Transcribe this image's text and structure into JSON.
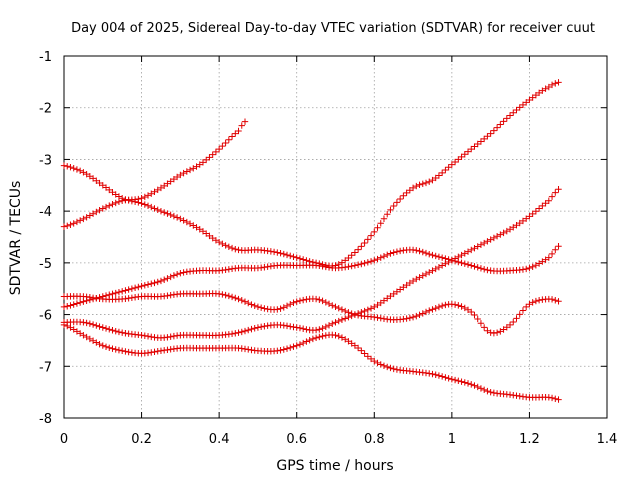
{
  "chart_data": {
    "type": "scatter",
    "title": "Day 004 of 2025, Sidereal Day-to-day VTEC variation (SDTVAR) for receiver cuut",
    "xlabel": "GPS time / hours",
    "ylabel": "SDTVAR / TECUs",
    "xlim": [
      0,
      1.4
    ],
    "ylim": [
      -8,
      -1
    ],
    "xticks": [
      0,
      0.2,
      0.4,
      0.6,
      0.8,
      1,
      1.2,
      1.4
    ],
    "xtick_labels": [
      "0",
      "0.2",
      "0.4",
      "0.6",
      "0.8",
      "1",
      "1.2",
      "1.4"
    ],
    "yticks": [
      -8,
      -7,
      -6,
      -5,
      -4,
      -3,
      -2,
      -1
    ],
    "ytick_labels": [
      "-8",
      "-7",
      "-6",
      "-5",
      "-4",
      "-3",
      "-2",
      "-1"
    ],
    "grid": true,
    "marker": "+",
    "marker_color": "#e00000",
    "series": [
      {
        "name": "s1",
        "x": [
          0,
          0.05,
          0.1,
          0.15,
          0.2,
          0.25,
          0.3,
          0.35,
          0.4,
          0.45,
          0.47
        ],
        "y": [
          -4.3,
          -4.15,
          -3.95,
          -3.8,
          -3.75,
          -3.55,
          -3.3,
          -3.1,
          -2.8,
          -2.45,
          -2.25
        ]
      },
      {
        "name": "s2",
        "x": [
          0,
          0.05,
          0.1,
          0.15,
          0.2,
          0.25,
          0.3,
          0.35,
          0.4,
          0.45,
          0.5,
          0.55,
          0.6,
          0.65,
          0.7,
          0.75,
          0.8,
          0.85,
          0.9,
          0.95,
          1.0,
          1.05,
          1.1,
          1.15,
          1.2,
          1.25,
          1.28
        ],
        "y": [
          -3.12,
          -3.25,
          -3.5,
          -3.75,
          -3.85,
          -4.0,
          -4.15,
          -4.35,
          -4.6,
          -4.75,
          -4.75,
          -4.8,
          -4.9,
          -5.0,
          -5.05,
          -4.8,
          -4.4,
          -3.9,
          -3.55,
          -3.4,
          -3.1,
          -2.8,
          -2.5,
          -2.15,
          -1.85,
          -1.6,
          -1.5
        ]
      },
      {
        "name": "s3",
        "x": [
          0,
          0.05,
          0.1,
          0.15,
          0.2,
          0.25,
          0.3,
          0.35,
          0.4,
          0.45,
          0.5,
          0.55,
          0.6,
          0.65,
          0.7,
          0.75,
          0.8,
          0.85,
          0.9,
          0.95,
          1.0,
          1.05,
          1.1,
          1.15,
          1.2,
          1.25,
          1.28
        ],
        "y": [
          -5.85,
          -5.75,
          -5.65,
          -5.55,
          -5.45,
          -5.35,
          -5.2,
          -5.15,
          -5.15,
          -5.1,
          -5.1,
          -5.05,
          -5.05,
          -5.05,
          -5.1,
          -5.05,
          -4.95,
          -4.8,
          -4.75,
          -4.85,
          -4.95,
          -5.05,
          -5.15,
          -5.15,
          -5.1,
          -4.9,
          -4.65
        ]
      },
      {
        "name": "s4",
        "x": [
          0,
          0.05,
          0.1,
          0.15,
          0.2,
          0.25,
          0.3,
          0.35,
          0.4,
          0.45,
          0.5,
          0.55,
          0.6,
          0.65,
          0.7,
          0.75,
          0.8,
          0.85,
          0.9,
          0.95,
          1.0,
          1.05,
          1.1,
          1.15,
          1.2,
          1.25,
          1.28
        ],
        "y": [
          -5.65,
          -5.65,
          -5.7,
          -5.7,
          -5.65,
          -5.65,
          -5.6,
          -5.6,
          -5.6,
          -5.7,
          -5.85,
          -5.9,
          -5.75,
          -5.7,
          -5.85,
          -6.0,
          -6.05,
          -6.1,
          -6.05,
          -5.9,
          -5.8,
          -5.95,
          -6.35,
          -6.2,
          -5.8,
          -5.7,
          -5.75
        ]
      },
      {
        "name": "s5",
        "x": [
          0,
          0.05,
          0.1,
          0.15,
          0.2,
          0.25,
          0.3,
          0.35,
          0.4,
          0.45,
          0.5,
          0.55,
          0.6,
          0.65,
          0.7,
          0.75,
          0.8,
          0.85,
          0.9,
          0.95,
          1.0,
          1.05,
          1.1,
          1.15,
          1.2,
          1.25,
          1.28
        ],
        "y": [
          -6.15,
          -6.15,
          -6.25,
          -6.35,
          -6.4,
          -6.45,
          -6.4,
          -6.4,
          -6.4,
          -6.35,
          -6.25,
          -6.2,
          -6.25,
          -6.3,
          -6.15,
          -6.0,
          -5.85,
          -5.6,
          -5.35,
          -5.15,
          -4.95,
          -4.75,
          -4.55,
          -4.35,
          -4.1,
          -3.8,
          -3.55
        ]
      },
      {
        "name": "s6",
        "x": [
          0,
          0.05,
          0.1,
          0.15,
          0.2,
          0.25,
          0.3,
          0.35,
          0.4,
          0.45,
          0.5,
          0.55,
          0.6,
          0.65,
          0.7,
          0.75,
          0.8,
          0.85,
          0.9,
          0.95,
          1.0,
          1.05,
          1.1,
          1.15,
          1.2,
          1.25,
          1.28
        ],
        "y": [
          -6.2,
          -6.4,
          -6.6,
          -6.7,
          -6.75,
          -6.7,
          -6.65,
          -6.65,
          -6.65,
          -6.65,
          -6.7,
          -6.7,
          -6.6,
          -6.45,
          -6.4,
          -6.6,
          -6.9,
          -7.05,
          -7.1,
          -7.15,
          -7.25,
          -7.35,
          -7.5,
          -7.55,
          -7.6,
          -7.6,
          -7.65
        ]
      }
    ]
  }
}
